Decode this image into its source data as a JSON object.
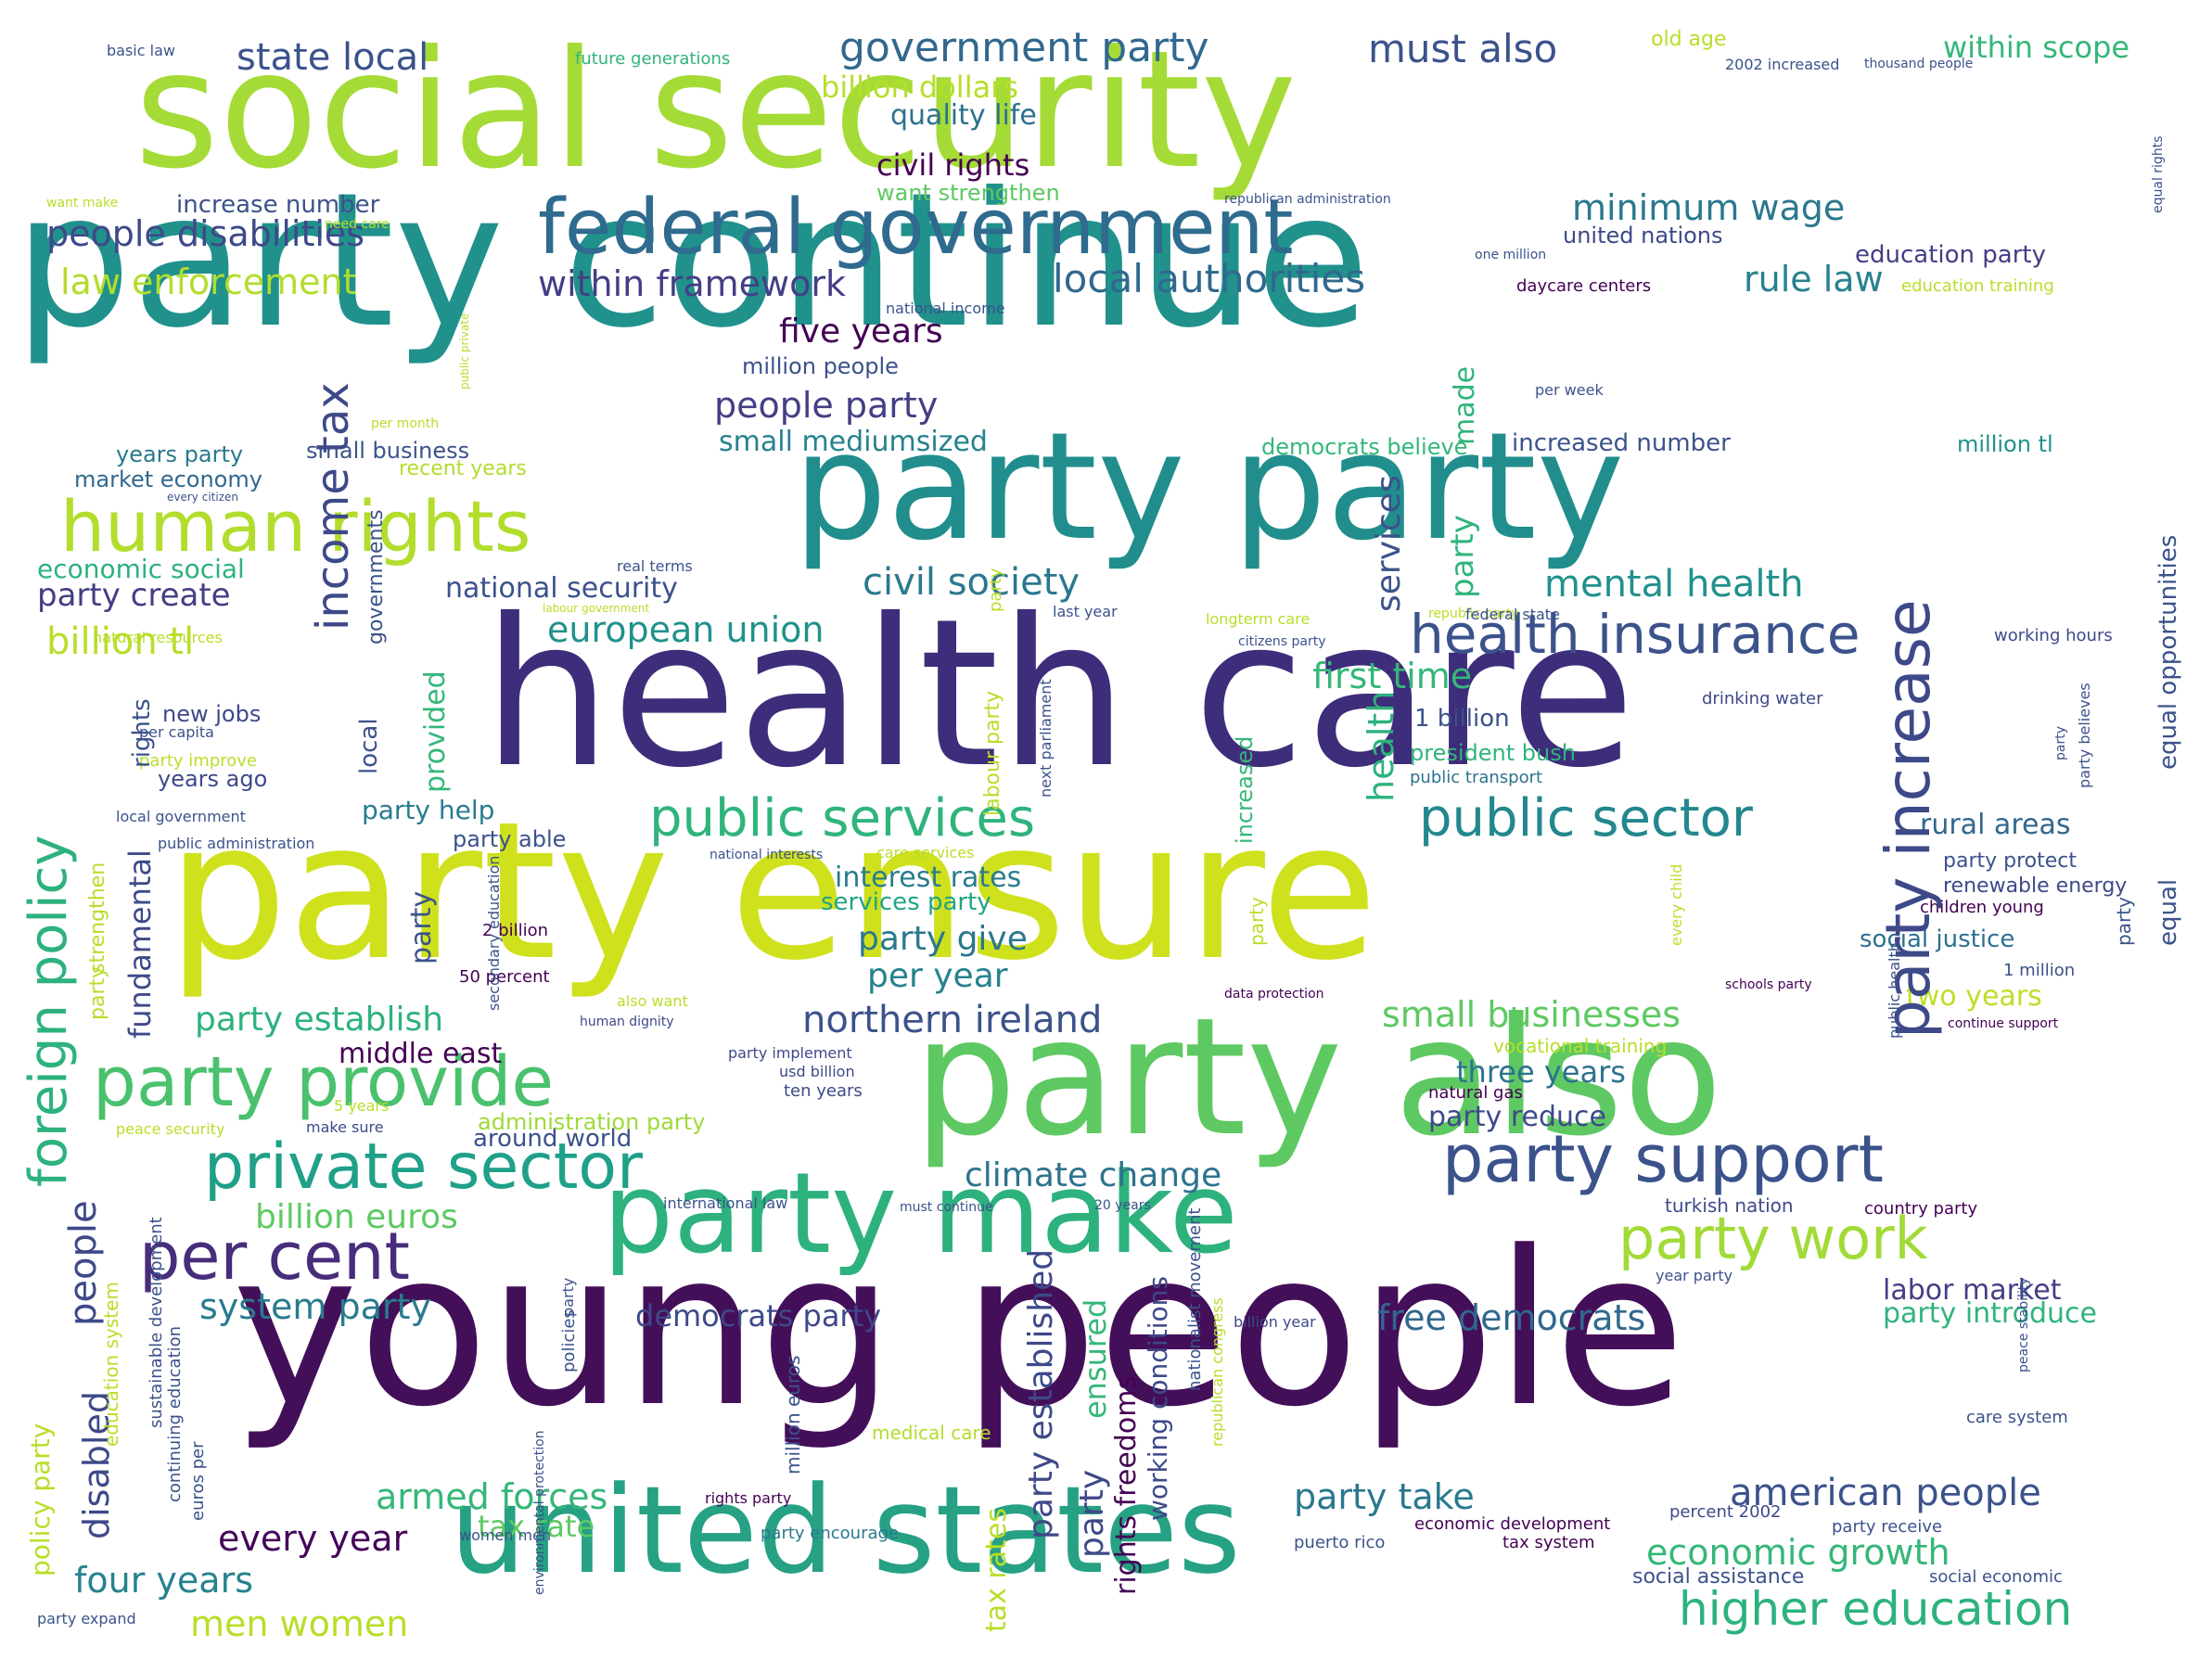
{
  "colormap": "viridis",
  "background": "#ffffff",
  "words": [
    {
      "text": "party continue",
      "color": "#21918c"
    },
    {
      "text": "health care",
      "color": "#3e2d7a"
    },
    {
      "text": "young people",
      "color": "#440f59"
    },
    {
      "text": "social security",
      "color": "#a5db36"
    },
    {
      "text": "party ensure",
      "color": "#cfe11c"
    },
    {
      "text": "party also",
      "color": "#5ec962"
    },
    {
      "text": "party party",
      "color": "#218e8d"
    },
    {
      "text": "united states",
      "color": "#26a183"
    },
    {
      "text": "federal government",
      "color": "#2f6b8e"
    },
    {
      "text": "party make",
      "color": "#2db27d"
    },
    {
      "text": "human rights",
      "color": "#b2dd2d"
    },
    {
      "text": "party support",
      "color": "#3b528b"
    },
    {
      "text": "private sector",
      "color": "#1fa088"
    },
    {
      "text": "party provide",
      "color": "#4ac16d"
    },
    {
      "text": "per cent",
      "color": "#472d7b"
    },
    {
      "text": "public services",
      "color": "#2fb47c"
    },
    {
      "text": "health insurance",
      "color": "#3b528b"
    },
    {
      "text": "public sector",
      "color": "#23888e"
    },
    {
      "text": "party work",
      "color": "#a2da37"
    },
    {
      "text": "higher education",
      "color": "#2db27d"
    },
    {
      "text": "party increase",
      "color": "#3e4989"
    },
    {
      "text": "local authorities",
      "color": "#31688e"
    },
    {
      "text": "income tax",
      "color": "#3e4989"
    },
    {
      "text": "foreign policy",
      "color": "#2db27d"
    },
    {
      "text": "government party",
      "color": "#31688e"
    },
    {
      "text": "must also",
      "color": "#3b528b"
    },
    {
      "text": "state local",
      "color": "#3b528b"
    },
    {
      "text": "people disabilities",
      "color": "#3e4989"
    },
    {
      "text": "law enforcement",
      "color": "#b2dd2d"
    },
    {
      "text": "within framework",
      "color": "#433e85"
    },
    {
      "text": "rule law",
      "color": "#26828e"
    },
    {
      "text": "minimum wage",
      "color": "#2a788e"
    },
    {
      "text": "five years",
      "color": "#440154"
    },
    {
      "text": "people party",
      "color": "#433e85"
    },
    {
      "text": "mental health",
      "color": "#21918c"
    },
    {
      "text": "civil society",
      "color": "#2a788e"
    },
    {
      "text": "european union",
      "color": "#21918c"
    },
    {
      "text": "first time",
      "color": "#35b779"
    },
    {
      "text": "northern ireland",
      "color": "#3b528b"
    },
    {
      "text": "small businesses",
      "color": "#5ec962"
    },
    {
      "text": "climate change",
      "color": "#2c728e"
    },
    {
      "text": "billion euros",
      "color": "#5ec962"
    },
    {
      "text": "system party",
      "color": "#287c8e"
    },
    {
      "text": "armed forces",
      "color": "#35b779"
    },
    {
      "text": "every year",
      "color": "#450559"
    },
    {
      "text": "four years",
      "color": "#26828e"
    },
    {
      "text": "men women",
      "color": "#b8de29"
    },
    {
      "text": "american people",
      "color": "#3b528b"
    },
    {
      "text": "economic growth",
      "color": "#35b779"
    },
    {
      "text": "party take",
      "color": "#2a788e"
    },
    {
      "text": "free democrats",
      "color": "#31688e"
    },
    {
      "text": "democrats party",
      "color": "#3e4989"
    },
    {
      "text": "labor market",
      "color": "#433e85"
    },
    {
      "text": "party introduce",
      "color": "#2fb47c"
    },
    {
      "text": "rural areas",
      "color": "#31688e"
    },
    {
      "text": "billion tl",
      "color": "#b8de29"
    },
    {
      "text": "party create",
      "color": "#433e85"
    },
    {
      "text": "national security",
      "color": "#3b528b"
    },
    {
      "text": "party establish",
      "color": "#2db27d"
    },
    {
      "text": "middle east",
      "color": "#440154"
    },
    {
      "text": "party give",
      "color": "#2a788e"
    },
    {
      "text": "per year",
      "color": "#26828e"
    },
    {
      "text": "interest rates",
      "color": "#287c8e"
    },
    {
      "text": "services party",
      "color": "#20a486"
    },
    {
      "text": "three years",
      "color": "#2c728e"
    },
    {
      "text": "party reduce",
      "color": "#3e4989"
    },
    {
      "text": "around world",
      "color": "#3b528b"
    },
    {
      "text": "administration party",
      "color": "#9fda3a"
    },
    {
      "text": "billion dollars",
      "color": "#b8de29"
    },
    {
      "text": "quality life",
      "color": "#2c728e"
    },
    {
      "text": "civil rights",
      "color": "#440154"
    },
    {
      "text": "want strengthen",
      "color": "#5ec962"
    },
    {
      "text": "increase number",
      "color": "#3b528b"
    },
    {
      "text": "within scope",
      "color": "#35b779"
    },
    {
      "text": "united nations",
      "color": "#3e4989"
    },
    {
      "text": "education party",
      "color": "#433e85"
    },
    {
      "text": "million people",
      "color": "#3b528b"
    },
    {
      "text": "small mediumsized",
      "color": "#26828e"
    },
    {
      "text": "increased number",
      "color": "#3b528b"
    },
    {
      "text": "democrats believe",
      "color": "#35b779"
    },
    {
      "text": "million tl",
      "color": "#21918c"
    },
    {
      "text": "two years",
      "color": "#bddf26"
    },
    {
      "text": "social justice",
      "color": "#2c728e"
    },
    {
      "text": "years party",
      "color": "#2a788e"
    },
    {
      "text": "small business",
      "color": "#3b528b"
    },
    {
      "text": "market economy",
      "color": "#31688e"
    },
    {
      "text": "recent years",
      "color": "#b2dd2d"
    },
    {
      "text": "economic social",
      "color": "#2db27d"
    },
    {
      "text": "new jobs",
      "color": "#3e4989"
    },
    {
      "text": "years ago",
      "color": "#3e4989"
    },
    {
      "text": "party help",
      "color": "#287c8e"
    },
    {
      "text": "party able",
      "color": "#3b528b"
    },
    {
      "text": "old age",
      "color": "#b8de29"
    },
    {
      "text": "future generations",
      "color": "#2fb47c"
    },
    {
      "text": "basic law",
      "color": "#3b528b"
    },
    {
      "text": "working hours",
      "color": "#3e4989"
    },
    {
      "text": "drinking water",
      "color": "#3e4989"
    },
    {
      "text": "president bush",
      "color": "#2fb47c"
    },
    {
      "text": "public transport",
      "color": "#2c728e"
    },
    {
      "text": "1 billion",
      "color": "#3b528b"
    },
    {
      "text": "renewable energy",
      "color": "#3e4989"
    },
    {
      "text": "party protect",
      "color": "#3b528b"
    },
    {
      "text": "children young",
      "color": "#440154"
    },
    {
      "text": "1 million",
      "color": "#3b528b"
    },
    {
      "text": "turkish nation",
      "color": "#3e4989"
    },
    {
      "text": "country party",
      "color": "#440154"
    },
    {
      "text": "year party",
      "color": "#3b528b"
    },
    {
      "text": "care system",
      "color": "#3b528b"
    },
    {
      "text": "social assistance",
      "color": "#3b528b"
    },
    {
      "text": "social economic",
      "color": "#3b528b"
    },
    {
      "text": "party receive",
      "color": "#3b528b"
    },
    {
      "text": "percent 2002",
      "color": "#3e4989"
    },
    {
      "text": "tax system",
      "color": "#440154"
    },
    {
      "text": "economic development",
      "color": "#440154"
    },
    {
      "text": "puerto rico",
      "color": "#3b528b"
    },
    {
      "text": "tax rate",
      "color": "#5ec962"
    },
    {
      "text": "party encourage",
      "color": "#2a788e"
    },
    {
      "text": "billion year",
      "color": "#3e4989"
    },
    {
      "text": "party expand",
      "color": "#3b528b"
    },
    {
      "text": "women men",
      "color": "#3b528b"
    },
    {
      "text": "rights party",
      "color": "#440154"
    },
    {
      "text": "medical care",
      "color": "#b2dd2d"
    },
    {
      "text": "vocational training",
      "color": "#b8de29"
    },
    {
      "text": "natural gas",
      "color": "#440154"
    },
    {
      "text": "ten years",
      "color": "#3e4989"
    },
    {
      "text": "usd billion",
      "color": "#3e4989"
    },
    {
      "text": "party implement",
      "color": "#3e4989"
    },
    {
      "text": "human dignity",
      "color": "#3e4989"
    },
    {
      "text": "also want",
      "color": "#b8de29"
    },
    {
      "text": "50 percent",
      "color": "#440154"
    },
    {
      "text": "2 billion",
      "color": "#440154"
    },
    {
      "text": "5 years",
      "color": "#b8de29"
    },
    {
      "text": "make sure",
      "color": "#3e4989"
    },
    {
      "text": "peace security",
      "color": "#b8de29"
    },
    {
      "text": "international law",
      "color": "#3b528b"
    },
    {
      "text": "must continue",
      "color": "#3b528b"
    },
    {
      "text": "20 years",
      "color": "#3b528b"
    },
    {
      "text": "data protection",
      "color": "#440154"
    },
    {
      "text": "schools party",
      "color": "#440154"
    },
    {
      "text": "continue support",
      "color": "#440154"
    },
    {
      "text": "national interests",
      "color": "#3b528b"
    },
    {
      "text": "care services",
      "color": "#b8de29"
    },
    {
      "text": "local government",
      "color": "#3b528b"
    },
    {
      "text": "public administration",
      "color": "#3b528b"
    },
    {
      "text": "party improve",
      "color": "#b8de29"
    },
    {
      "text": "per capita",
      "color": "#3b528b"
    },
    {
      "text": "natural resources",
      "color": "#b8de29"
    },
    {
      "text": "real terms",
      "color": "#3b528b"
    },
    {
      "text": "labour government",
      "color": "#b8de29"
    },
    {
      "text": "last year",
      "color": "#3b528b"
    },
    {
      "text": "longterm care",
      "color": "#b8de29"
    },
    {
      "text": "citizens party",
      "color": "#3b528b"
    },
    {
      "text": "republic party",
      "color": "#b8de29"
    },
    {
      "text": "federal state",
      "color": "#3b528b"
    },
    {
      "text": "per week",
      "color": "#3b528b"
    },
    {
      "text": "daycare centers",
      "color": "#440154"
    },
    {
      "text": "education training",
      "color": "#b8de29"
    },
    {
      "text": "one million",
      "color": "#3b528b"
    },
    {
      "text": "national income",
      "color": "#3b528b"
    },
    {
      "text": "republican administration",
      "color": "#3b528b"
    },
    {
      "text": "2002 increased",
      "color": "#3b528b"
    },
    {
      "text": "thousand people",
      "color": "#3b528b"
    },
    {
      "text": "want make",
      "color": "#b8de29"
    },
    {
      "text": "need care",
      "color": "#b8de29"
    },
    {
      "text": "per month",
      "color": "#b8de29"
    },
    {
      "text": "every citizen",
      "color": "#3b528b"
    },
    {
      "text": "made",
      "color": "#2fb47c"
    },
    {
      "text": "party",
      "color": "#2fb47c"
    },
    {
      "text": "services",
      "color": "#3b528b"
    },
    {
      "text": "health",
      "color": "#2db27d"
    },
    {
      "text": "provided",
      "color": "#35b779"
    },
    {
      "text": "party",
      "color": "#3b528b"
    },
    {
      "text": "local",
      "color": "#3b528b"
    },
    {
      "text": "governments",
      "color": "#3b528b"
    },
    {
      "text": "rights",
      "color": "#3b528b"
    },
    {
      "text": "fundamental",
      "color": "#3e4989"
    },
    {
      "text": "people",
      "color": "#3e4989"
    },
    {
      "text": "disabled",
      "color": "#3e4989"
    },
    {
      "text": "party established",
      "color": "#3e4989"
    },
    {
      "text": "ensured",
      "color": "#35b779"
    },
    {
      "text": "party",
      "color": "#3e4989"
    },
    {
      "text": "rights freedoms",
      "color": "#440154"
    },
    {
      "text": "working conditions",
      "color": "#3e4989"
    },
    {
      "text": "tax rates",
      "color": "#b8de29"
    },
    {
      "text": "increased",
      "color": "#35b779"
    },
    {
      "text": "equal opportunities",
      "color": "#3b528b"
    },
    {
      "text": "equal",
      "color": "#3b528b"
    },
    {
      "text": "party",
      "color": "#3b528b"
    },
    {
      "text": "strengthen",
      "color": "#b8de29"
    },
    {
      "text": "party",
      "color": "#b8de29"
    },
    {
      "text": "policy party",
      "color": "#b8de29"
    },
    {
      "text": "education system",
      "color": "#b8de29"
    },
    {
      "text": "sustainable development",
      "color": "#3b528b"
    },
    {
      "text": "continuing education",
      "color": "#3b528b"
    },
    {
      "text": "euros per",
      "color": "#3b528b"
    },
    {
      "text": "million euros",
      "color": "#3b528b"
    },
    {
      "text": "policies",
      "color": "#3b528b"
    },
    {
      "text": "party",
      "color": "#3b528b"
    },
    {
      "text": "nationalist movement",
      "color": "#3b528b"
    },
    {
      "text": "republican congress",
      "color": "#b8de29"
    },
    {
      "text": "party",
      "color": "#b8de29"
    },
    {
      "text": "secondary education",
      "color": "#3b528b"
    },
    {
      "text": "party",
      "color": "#b8de29"
    },
    {
      "text": "labour party",
      "color": "#b8de29"
    },
    {
      "text": "next parliament",
      "color": "#3b528b"
    },
    {
      "text": "every child",
      "color": "#b8de29"
    },
    {
      "text": "public health",
      "color": "#3b528b"
    },
    {
      "text": "party believes",
      "color": "#3b528b"
    },
    {
      "text": "party",
      "color": "#3b528b"
    },
    {
      "text": "environmental protection",
      "color": "#3b528b"
    },
    {
      "text": "peace stability",
      "color": "#3b528b"
    },
    {
      "text": "equal rights",
      "color": "#3b528b"
    },
    {
      "text": "public private",
      "color": "#b8de29"
    }
  ]
}
